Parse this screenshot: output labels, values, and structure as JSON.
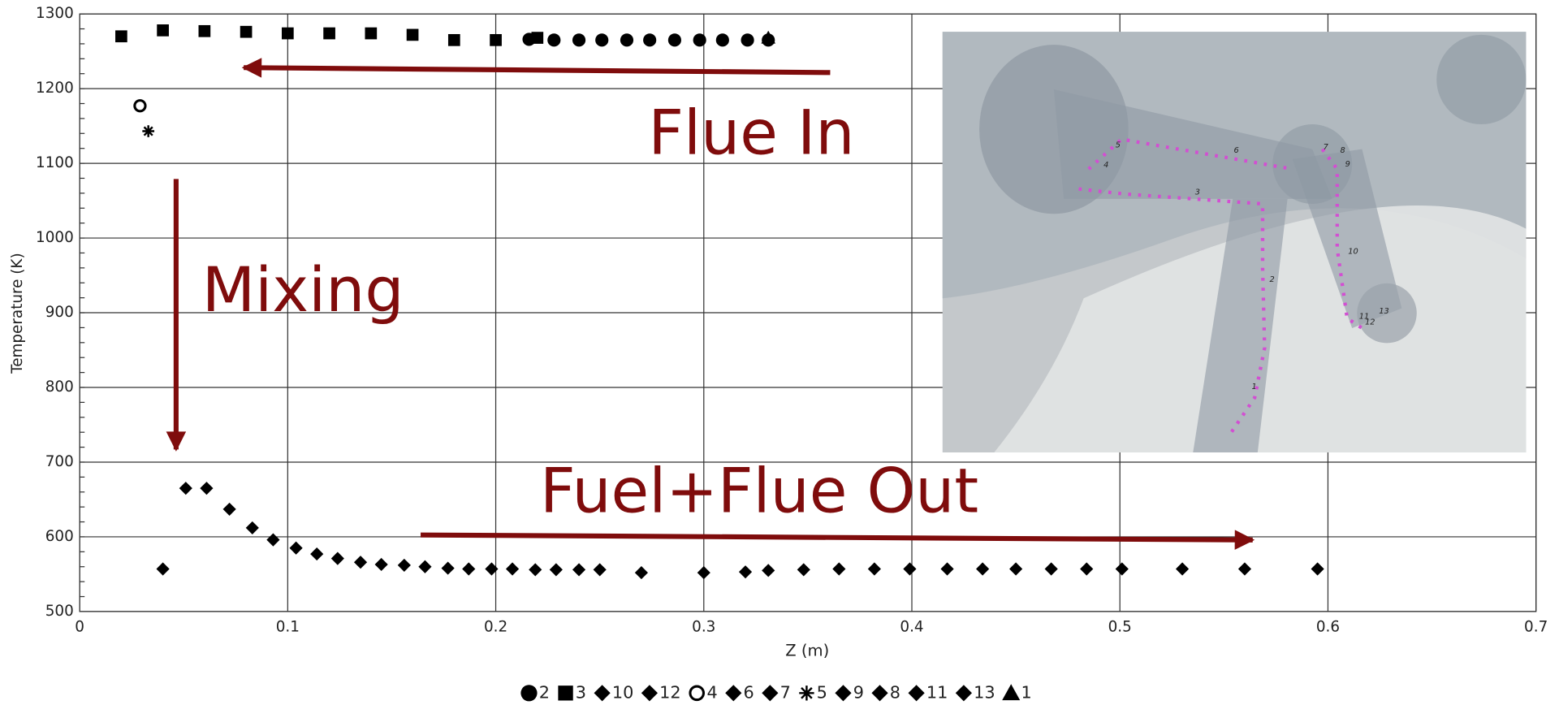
{
  "chart_data": {
    "type": "scatter",
    "x_label": "Z (m)",
    "y_label": "Temperature (K)",
    "xlim": [
      0,
      0.7
    ],
    "xticks": [
      0,
      0.1,
      0.2,
      0.3,
      0.4,
      0.5,
      0.6,
      0.7
    ],
    "ylim": [
      500,
      1300
    ],
    "yticks": [
      500,
      600,
      700,
      800,
      900,
      1000,
      1100,
      1200,
      1300
    ],
    "grid": true,
    "annotations": [
      "Flue In",
      "Mixing",
      "Fuel+Flue Out"
    ],
    "series": [
      {
        "name": "2",
        "marker": "circle",
        "color": "#000000",
        "x": [
          0.216,
          0.228,
          0.24,
          0.251,
          0.263,
          0.274,
          0.286,
          0.298,
          0.309,
          0.321,
          0.331
        ],
        "values": [
          1266,
          1265,
          1265,
          1265,
          1265,
          1265,
          1265,
          1265,
          1265,
          1265,
          1265
        ]
      },
      {
        "name": "3",
        "marker": "square",
        "color": "#000000",
        "x": [
          0.02,
          0.04,
          0.06,
          0.08,
          0.1,
          0.12,
          0.14,
          0.16,
          0.18,
          0.2,
          0.22
        ],
        "values": [
          1270,
          1278,
          1277,
          1276,
          1274,
          1274,
          1274,
          1272,
          1265,
          1265,
          1268
        ]
      },
      {
        "name": "10",
        "marker": "diamond",
        "color": "#000000",
        "x": [
          0.051,
          0.061,
          0.072,
          0.083,
          0.093,
          0.104,
          0.114,
          0.124,
          0.135,
          0.145,
          0.156,
          0.166,
          0.177,
          0.187,
          0.198,
          0.208,
          0.219,
          0.229,
          0.24,
          0.25
        ],
        "values": [
          665,
          665,
          637,
          612,
          596,
          585,
          577,
          571,
          566,
          563,
          562,
          560,
          558,
          557,
          557,
          557,
          556,
          556,
          556,
          556
        ]
      },
      {
        "name": "12",
        "marker": "diamond",
        "color": "#000000",
        "x": [
          0.04,
          0.27,
          0.3
        ],
        "values": [
          557,
          552,
          552
        ]
      },
      {
        "name": "4",
        "marker": "open-circle",
        "color": "#000000",
        "x": [
          0.029
        ],
        "values": [
          1177
        ]
      },
      {
        "name": "6",
        "marker": "diamond",
        "color": "#000000",
        "x": [
          0.32,
          0.331
        ],
        "values": [
          553,
          555
        ]
      },
      {
        "name": "7",
        "marker": "diamond",
        "color": "#000000",
        "x": [
          0.348,
          0.365
        ],
        "values": [
          556,
          557
        ]
      },
      {
        "name": "5",
        "marker": "asterisk",
        "color": "#000000",
        "x": [
          0.033
        ],
        "values": [
          1143
        ]
      },
      {
        "name": "9",
        "marker": "diamond",
        "color": "#000000",
        "x": [
          0.382,
          0.399
        ],
        "values": [
          557,
          557
        ]
      },
      {
        "name": "8",
        "marker": "diamond",
        "color": "#000000",
        "x": [
          0.417,
          0.434
        ],
        "values": [
          557,
          557
        ]
      },
      {
        "name": "11",
        "marker": "diamond",
        "color": "#000000",
        "x": [
          0.45,
          0.467,
          0.484
        ],
        "values": [
          557,
          557,
          557
        ]
      },
      {
        "name": "13",
        "marker": "diamond",
        "color": "#000000",
        "x": [
          0.501,
          0.53,
          0.56,
          0.595
        ],
        "values": [
          557,
          557,
          557,
          557
        ]
      },
      {
        "name": "1",
        "marker": "triangle",
        "color": "#000000",
        "x": [
          0.331
        ],
        "values": [
          1268
        ]
      }
    ]
  },
  "inset": {
    "labels": [
      "1",
      "2",
      "3",
      "4",
      "5",
      "6",
      "7",
      "8",
      "9",
      "10",
      "11",
      "12",
      "13"
    ]
  }
}
